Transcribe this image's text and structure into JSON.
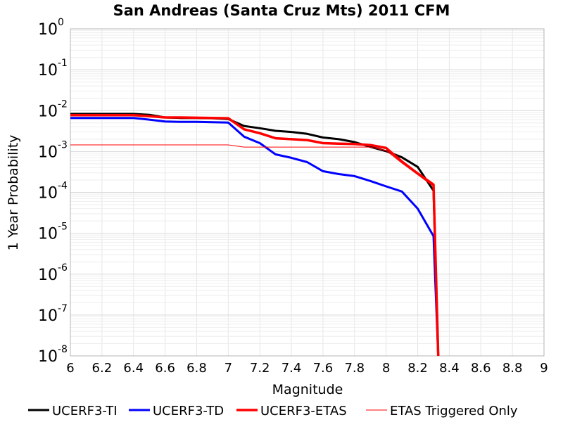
{
  "chart_data": {
    "type": "line",
    "title": "San Andreas (Santa Cruz Mts) 2011 CFM",
    "xlabel": "Magnitude",
    "ylabel": "1 Year Probability",
    "xlim": [
      6,
      9
    ],
    "ylim": [
      1e-08,
      1
    ],
    "yscale": "log",
    "grid": true,
    "legend_position": "bottom",
    "x_ticks": [
      "6",
      "6.2",
      "6.4",
      "6.6",
      "6.8",
      "7",
      "7.2",
      "7.4",
      "7.6",
      "7.8",
      "8",
      "8.2",
      "8.4",
      "8.6",
      "8.8",
      "9"
    ],
    "y_ticks": [
      {
        "base": "10",
        "exp": "0"
      },
      {
        "base": "10",
        "exp": "-1"
      },
      {
        "base": "10",
        "exp": "-2"
      },
      {
        "base": "10",
        "exp": "-3"
      },
      {
        "base": "10",
        "exp": "-4"
      },
      {
        "base": "10",
        "exp": "-5"
      },
      {
        "base": "10",
        "exp": "-6"
      },
      {
        "base": "10",
        "exp": "-7"
      },
      {
        "base": "10",
        "exp": "-8"
      }
    ],
    "x": [
      6.0,
      6.1,
      6.2,
      6.3,
      6.4,
      6.5,
      6.6,
      6.7,
      6.8,
      6.9,
      7.0,
      7.1,
      7.2,
      7.3,
      7.4,
      7.5,
      7.6,
      7.7,
      7.8,
      7.9,
      8.0,
      8.1,
      8.2,
      8.3,
      8.33
    ],
    "series": [
      {
        "name": "UCERF3-TI",
        "color": "#000000",
        "width": 3,
        "values": [
          0.0083,
          0.0083,
          0.0083,
          0.0083,
          0.0083,
          0.0079,
          0.0068,
          0.0066,
          0.0066,
          0.0065,
          0.0062,
          0.0042,
          0.0037,
          0.0032,
          0.003,
          0.0027,
          0.0022,
          0.002,
          0.0017,
          0.0013,
          0.00102,
          0.00072,
          0.00042,
          0.00011,
          1e-08
        ]
      },
      {
        "name": "UCERF3-TD",
        "color": "#0000ff",
        "width": 3,
        "values": [
          0.0066,
          0.0066,
          0.0066,
          0.0066,
          0.0066,
          0.006,
          0.0054,
          0.0053,
          0.0053,
          0.0052,
          0.0051,
          0.0023,
          0.0016,
          0.00085,
          0.0007,
          0.00055,
          0.00033,
          0.00028,
          0.00025,
          0.00019,
          0.00014,
          0.000105,
          4e-05,
          8.5e-06,
          1e-08
        ]
      },
      {
        "name": "UCERF3-ETAS",
        "color": "#ff0000",
        "width": 3.5,
        "values": [
          0.0077,
          0.0077,
          0.0077,
          0.0077,
          0.0077,
          0.0073,
          0.0068,
          0.0068,
          0.0067,
          0.0066,
          0.0065,
          0.0035,
          0.0028,
          0.0021,
          0.002,
          0.0019,
          0.0016,
          0.00155,
          0.00152,
          0.00144,
          0.00122,
          0.00057,
          0.00029,
          0.000155,
          1e-08
        ]
      },
      {
        "name": "ETAS Triggered Only",
        "color": "#ff0000",
        "width": 1,
        "values": [
          0.00145,
          0.00145,
          0.00145,
          0.00145,
          0.00145,
          0.00145,
          0.00145,
          0.00145,
          0.00145,
          0.00145,
          0.00145,
          0.00128,
          0.00128,
          0.00128,
          0.00128,
          0.00128,
          0.00128,
          0.00128,
          0.00128,
          0.00128,
          0.00105,
          0.00052,
          0.00027,
          0.00014,
          1e-08
        ]
      }
    ]
  }
}
